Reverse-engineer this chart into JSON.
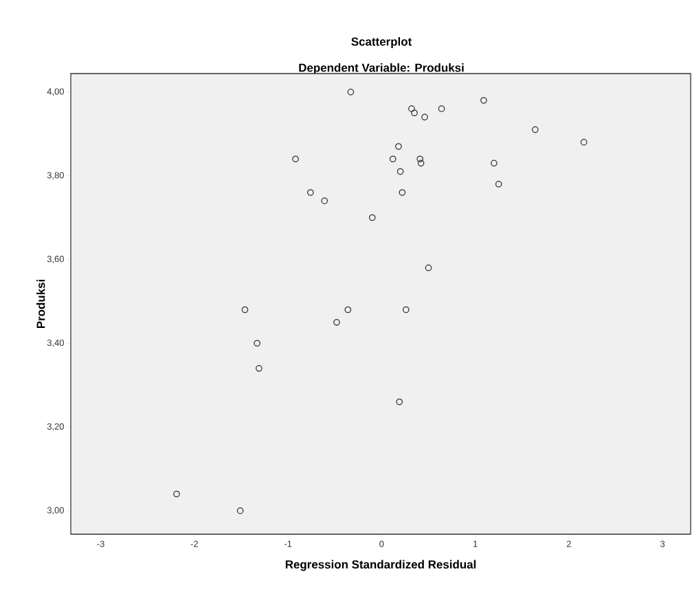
{
  "chart_data": {
    "type": "scatter",
    "title": "Scatterplot",
    "subtitle": "Dependent Variable: Produksi",
    "xlabel": "Regression Standardized Residual",
    "ylabel": "Produksi",
    "marker": "circle",
    "grid": false,
    "series": [
      {
        "color": "#333333",
        "x": [
          -0.33,
          0.32,
          0.35,
          0.46,
          0.64,
          1.09,
          1.64,
          2.16,
          -0.92,
          0.18,
          0.12,
          0.41,
          0.42,
          1.2,
          0.2,
          -0.76,
          0.22,
          1.25,
          -0.61,
          -0.1,
          0.5,
          -1.46,
          -0.48,
          -0.36,
          0.26,
          -1.33,
          -1.31,
          0.19,
          -2.19,
          -1.51
        ],
        "values": [
          4.0,
          3.96,
          3.95,
          3.94,
          3.96,
          3.98,
          3.91,
          3.88,
          3.84,
          3.87,
          3.84,
          3.84,
          3.83,
          3.83,
          3.81,
          3.76,
          3.76,
          3.78,
          3.74,
          3.7,
          3.58,
          3.48,
          3.45,
          3.48,
          3.48,
          3.4,
          3.34,
          3.26,
          3.04,
          3.0
        ]
      }
    ],
    "xlim": [
      -3.32,
      3.3
    ],
    "ylim": [
      2.944,
      4.044
    ],
    "xticks": [
      -3,
      -2,
      -1,
      {
        "value": 0,
        "label": "0"
      },
      1,
      2,
      3
    ],
    "yticks": [
      {
        "value": 3.0,
        "label": "3,00"
      },
      {
        "value": 3.2,
        "label": "3,20"
      },
      {
        "value": 3.4,
        "label": "3,40"
      },
      {
        "value": 3.6,
        "label": "3,60"
      },
      {
        "value": 3.8,
        "label": "3,80"
      },
      {
        "value": 4.0,
        "label": "4,00"
      }
    ]
  }
}
